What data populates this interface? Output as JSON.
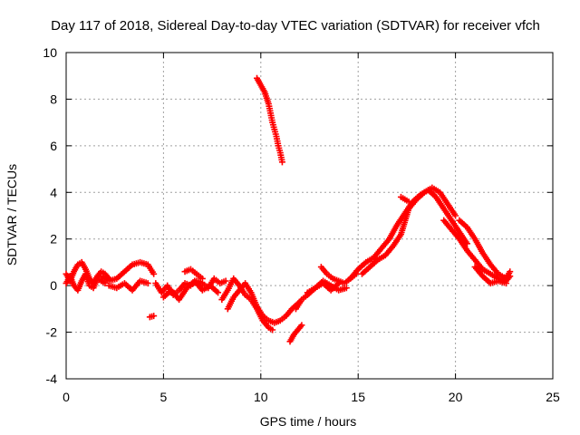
{
  "chart_data": {
    "type": "scatter",
    "title": "Day 117 of 2018, Sidereal Day-to-day VTEC variation (SDTVAR) for receiver vfch",
    "xlabel": "GPS time / hours",
    "ylabel": "SDTVAR / TECUs",
    "xlim": [
      0,
      25
    ],
    "ylim": [
      -4,
      10
    ],
    "xticks": [
      "0",
      "5",
      "10",
      "15",
      "20",
      "25"
    ],
    "yticks": [
      "-4",
      "-2",
      "0",
      "2",
      "4",
      "6",
      "8",
      "10"
    ],
    "grid": true,
    "marker": "plus",
    "color": "#ff0000",
    "series": [
      {
        "name": "SDTVAR",
        "segments": [
          {
            "x": [
              0.0,
              0.2,
              0.4,
              0.6,
              0.8,
              1.0,
              1.2,
              1.4,
              1.6,
              1.8,
              2.0,
              2.2
            ],
            "y": [
              0.5,
              0.2,
              0.6,
              0.9,
              1.0,
              0.7,
              0.3,
              0.1,
              0.4,
              0.6,
              0.5,
              0.3
            ]
          },
          {
            "x": [
              0.0,
              0.2,
              0.4,
              0.6,
              0.8,
              1.0,
              1.2,
              1.4,
              1.6,
              1.8,
              2.0
            ],
            "y": [
              0.1,
              0.4,
              0.0,
              -0.2,
              0.2,
              0.5,
              0.0,
              -0.1,
              0.3,
              0.2,
              0.1
            ]
          },
          {
            "x": [
              1.8,
              2.2,
              2.6,
              3.0,
              3.4,
              3.8,
              4.2,
              4.5
            ],
            "y": [
              0.4,
              0.2,
              0.3,
              0.6,
              0.9,
              1.0,
              0.9,
              0.5
            ]
          },
          {
            "x": [
              2.2,
              2.6,
              3.0,
              3.4,
              3.8,
              4.2
            ],
            "y": [
              0.0,
              -0.1,
              0.1,
              -0.2,
              0.2,
              0.1
            ]
          },
          {
            "x": [
              4.3,
              4.5
            ],
            "y": [
              -1.35,
              -1.3
            ]
          },
          {
            "x": [
              4.6,
              4.9,
              5.2,
              5.5,
              5.8,
              6.1,
              6.4,
              6.7,
              7.0,
              7.3,
              7.6,
              7.9,
              8.2
            ],
            "y": [
              0.1,
              -0.3,
              0.0,
              -0.4,
              -0.2,
              0.1,
              0.0,
              0.2,
              0.1,
              -0.1,
              0.3,
              0.1,
              0.2
            ]
          },
          {
            "x": [
              5.0,
              5.4,
              5.8,
              6.2,
              6.6,
              7.0,
              7.4,
              7.8
            ],
            "y": [
              -0.5,
              -0.2,
              -0.6,
              -0.1,
              0.2,
              -0.2,
              0.0,
              -0.3
            ]
          },
          {
            "x": [
              6.1,
              6.4,
              6.7,
              7.0
            ],
            "y": [
              0.6,
              0.7,
              0.5,
              0.3
            ]
          },
          {
            "x": [
              8.0,
              8.3,
              8.6,
              8.9,
              9.2,
              9.5,
              9.8,
              10.1,
              10.4,
              10.6
            ],
            "y": [
              -0.6,
              -0.2,
              0.3,
              0.0,
              -0.4,
              -0.6,
              -1.0,
              -1.5,
              -1.8,
              -1.9
            ]
          },
          {
            "x": [
              8.3,
              8.6,
              8.9,
              9.2,
              9.5,
              9.8,
              10.1,
              10.4,
              10.7,
              11.0,
              11.3,
              11.6,
              12.0
            ],
            "y": [
              -1.0,
              -0.5,
              -0.2,
              0.1,
              -0.3,
              -0.9,
              -1.3,
              -1.5,
              -1.6,
              -1.5,
              -1.3,
              -1.0,
              -0.7
            ]
          },
          {
            "x": [
              9.8,
              10.0,
              10.2,
              10.4,
              10.5,
              10.6,
              10.7,
              10.8,
              10.9,
              11.0,
              11.1
            ],
            "y": [
              8.9,
              8.6,
              8.3,
              7.8,
              7.4,
              7.0,
              6.7,
              6.4,
              6.0,
              5.7,
              5.3
            ]
          },
          {
            "x": [
              11.5,
              11.7,
              11.9,
              12.1
            ],
            "y": [
              -2.4,
              -2.1,
              -1.9,
              -1.7
            ]
          },
          {
            "x": [
              11.8,
              12.1,
              12.4,
              12.8,
              13.2,
              13.6,
              14.0,
              14.4
            ],
            "y": [
              -1.0,
              -0.6,
              -0.4,
              -0.1,
              0.2,
              0.0,
              -0.2,
              -0.1
            ]
          },
          {
            "x": [
              12.4,
              12.8,
              13.2,
              13.6,
              14.0
            ],
            "y": [
              -0.3,
              -0.1,
              0.1,
              -0.2,
              0.1
            ]
          },
          {
            "x": [
              13.1,
              13.4,
              13.7,
              14.0,
              14.3,
              14.6,
              14.9
            ],
            "y": [
              0.8,
              0.5,
              0.3,
              0.2,
              0.1,
              0.3,
              0.5
            ]
          },
          {
            "x": [
              14.6,
              15.0,
              15.4,
              15.8,
              16.2,
              16.6,
              17.0,
              17.4,
              17.8,
              18.2,
              18.6,
              19.0,
              19.4,
              19.8,
              20.2,
              20.6
            ],
            "y": [
              0.3,
              0.7,
              1.0,
              1.2,
              1.6,
              2.0,
              2.6,
              3.1,
              3.6,
              3.9,
              4.1,
              3.8,
              3.3,
              2.8,
              2.3,
              1.8
            ]
          },
          {
            "x": [
              15.2,
              15.6,
              16.0,
              16.4,
              16.8,
              17.2,
              17.6,
              18.0,
              18.4,
              18.8,
              19.2,
              19.6,
              20.0
            ],
            "y": [
              0.5,
              0.8,
              1.1,
              1.3,
              1.7,
              2.2,
              3.3,
              3.7,
              4.0,
              4.2,
              4.0,
              3.5,
              3.0
            ]
          },
          {
            "x": [
              17.2,
              17.4,
              17.6
            ],
            "y": [
              3.8,
              3.7,
              3.6
            ]
          },
          {
            "x": [
              19.4,
              19.8,
              20.2,
              20.6,
              21.0,
              21.4,
              21.8,
              22.2,
              22.6,
              22.8
            ],
            "y": [
              2.8,
              2.4,
              2.0,
              1.5,
              1.1,
              0.7,
              0.5,
              0.3,
              0.2,
              0.4
            ]
          },
          {
            "x": [
              20.2,
              20.6,
              21.0,
              21.4,
              21.8,
              22.2,
              22.6,
              22.8
            ],
            "y": [
              2.8,
              2.5,
              2.0,
              1.4,
              0.9,
              0.5,
              0.3,
              0.6
            ]
          },
          {
            "x": [
              21.0,
              21.4,
              21.8,
              22.2,
              22.6
            ],
            "y": [
              0.8,
              0.4,
              0.1,
              0.2,
              0.1
            ]
          }
        ]
      }
    ]
  }
}
